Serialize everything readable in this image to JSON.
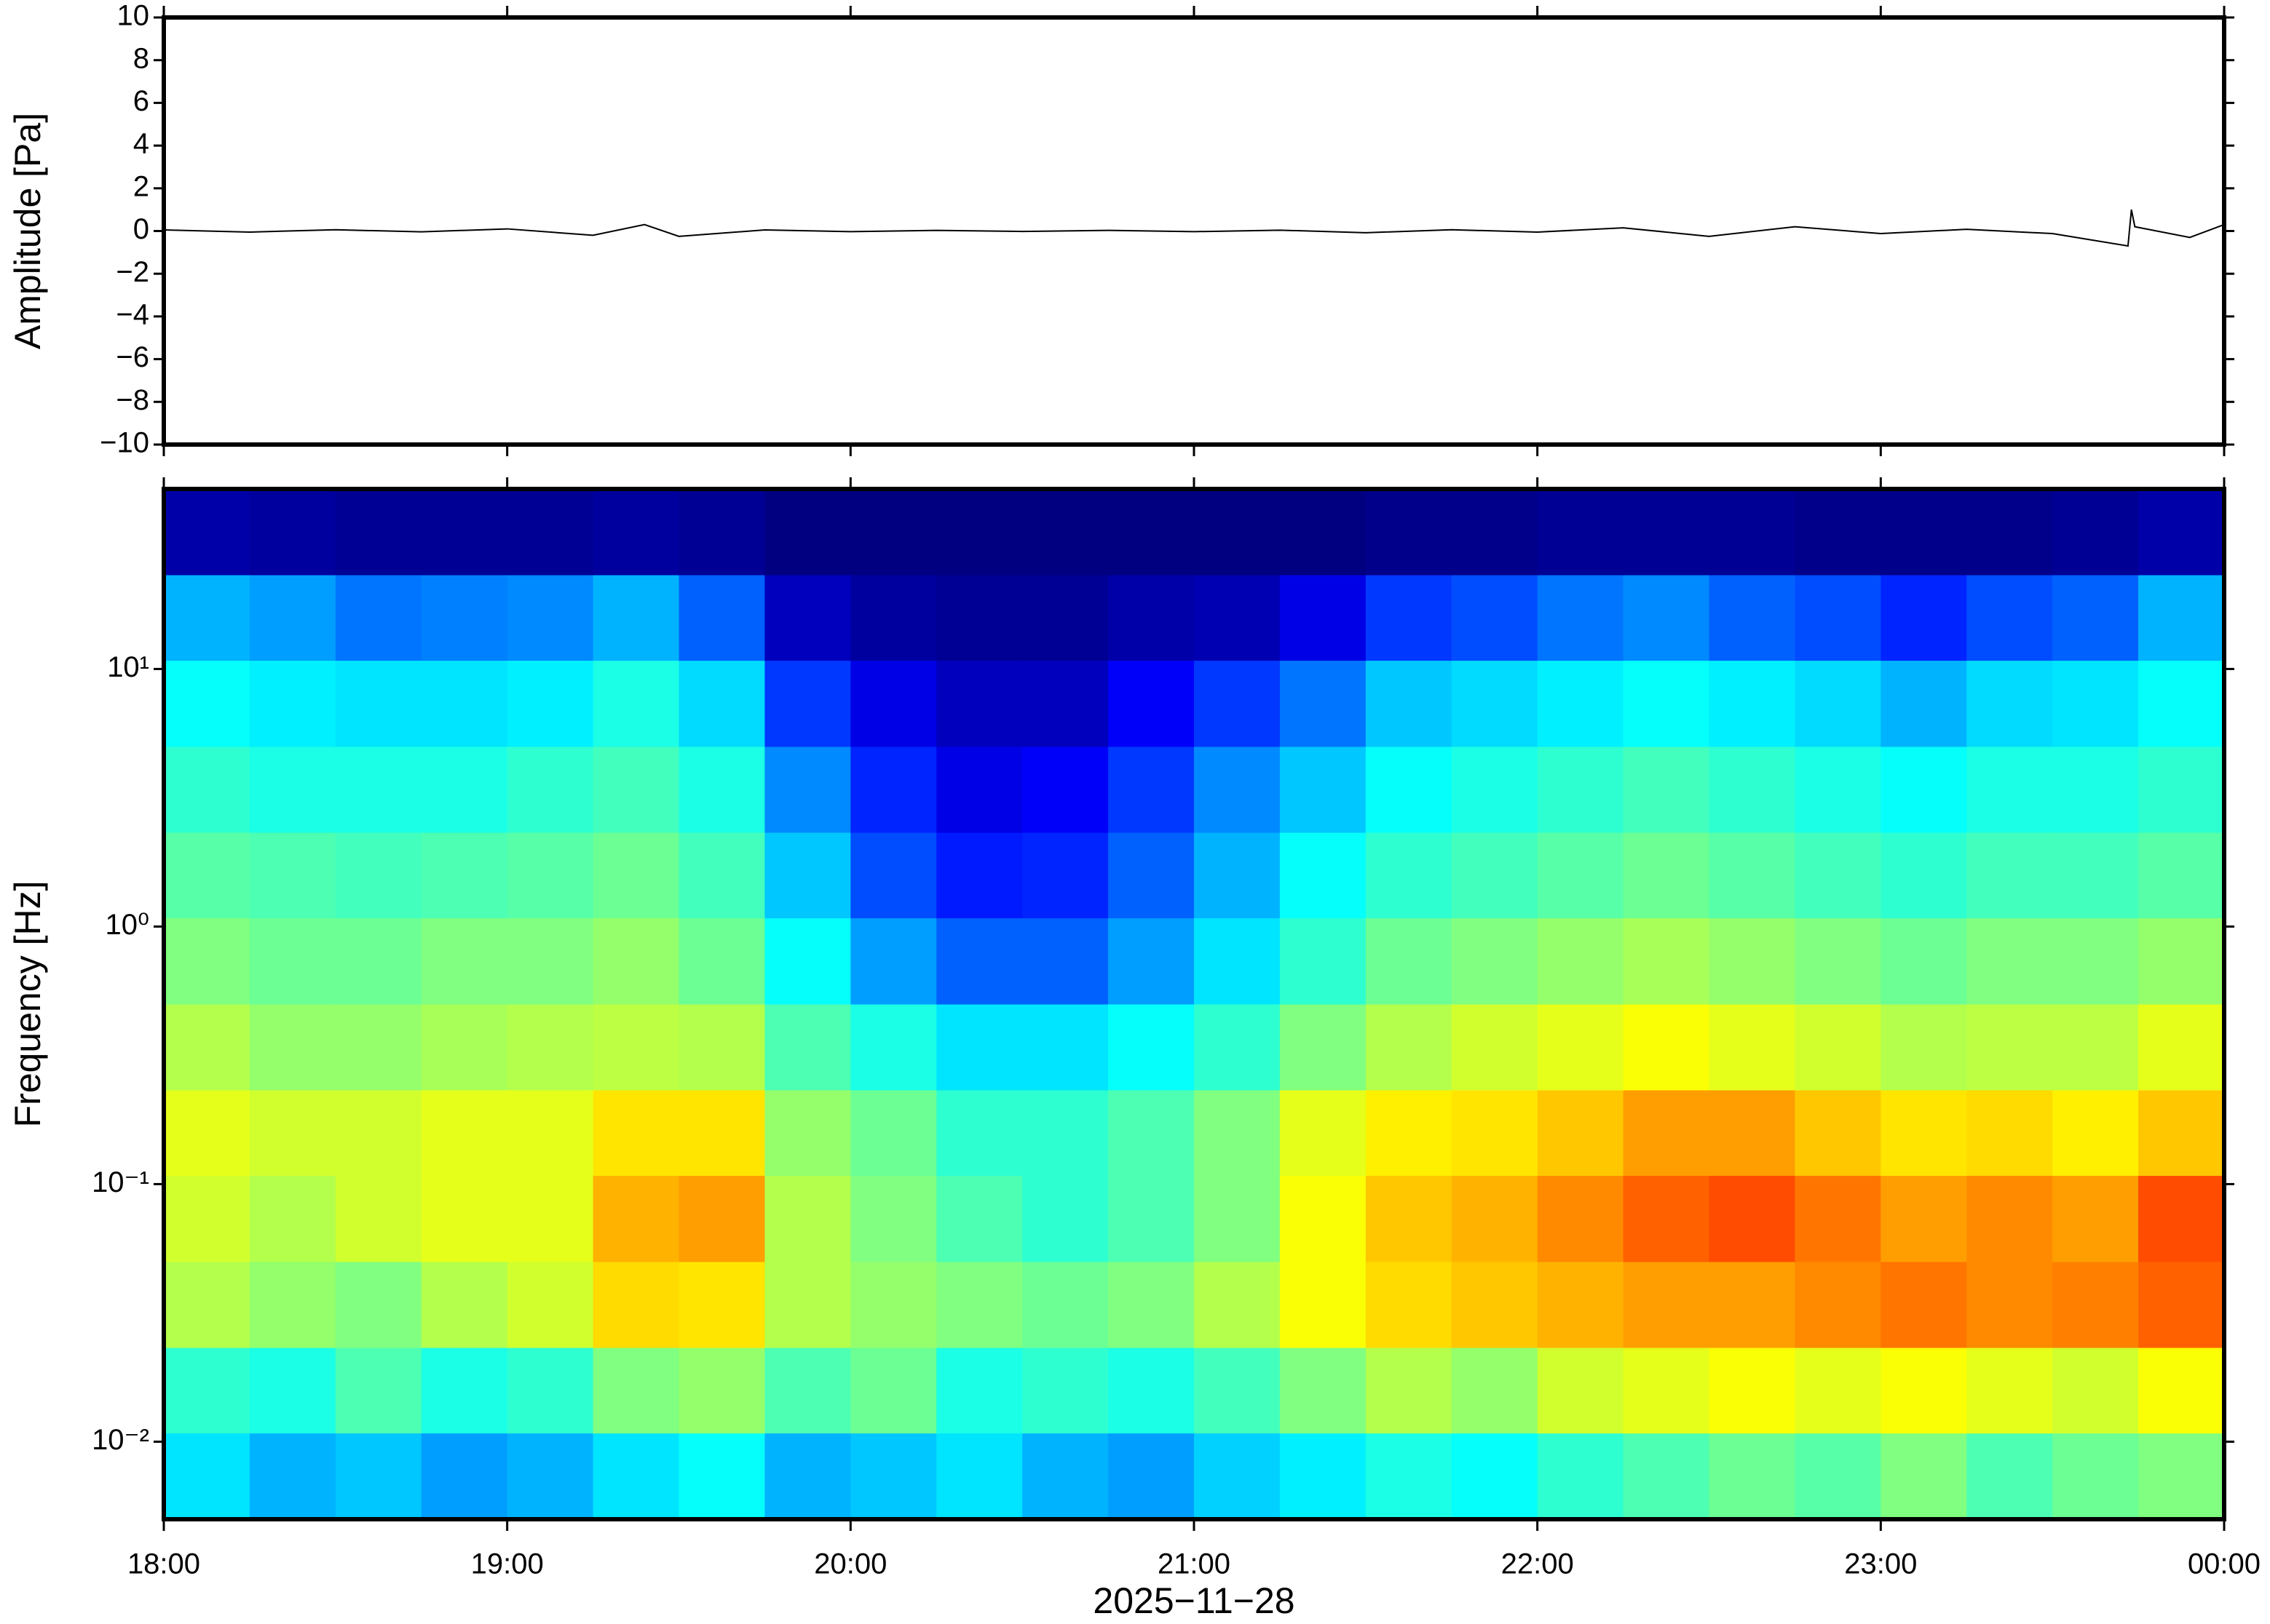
{
  "chart_data": [
    {
      "type": "line",
      "ylabel": "Amplitude [Pa]",
      "color": "#000000",
      "xlim": [
        18,
        24
      ],
      "xticks": [
        18,
        19,
        20,
        21,
        22,
        23,
        24
      ],
      "ylim": [
        -10,
        10
      ],
      "yticks": [
        {
          "value": -10,
          "label": "−10"
        },
        {
          "value": -8,
          "label": "−8"
        },
        {
          "value": -6,
          "label": "−6"
        },
        {
          "value": -4,
          "label": "−4"
        },
        {
          "value": -2,
          "label": "−2"
        },
        0,
        2,
        4,
        6,
        8,
        10
      ],
      "x": [
        18,
        18.25,
        18.5,
        18.75,
        19,
        19.25,
        19.4,
        19.5,
        19.75,
        20,
        20.25,
        20.5,
        20.75,
        21,
        21.25,
        21.5,
        21.75,
        22,
        22.25,
        22.5,
        22.75,
        23,
        23.25,
        23.5,
        23.72,
        23.73,
        23.74,
        23.9,
        24
      ],
      "values": [
        0.05,
        -0.05,
        0.06,
        -0.04,
        0.1,
        -0.2,
        0.3,
        -0.25,
        0.05,
        -0.03,
        0.03,
        -0.02,
        0.03,
        -0.03,
        0.04,
        -0.08,
        0.06,
        -0.05,
        0.15,
        -0.25,
        0.2,
        -0.12,
        0.08,
        -0.12,
        -0.7,
        1.0,
        0.2,
        -0.3,
        0.3
      ]
    },
    {
      "type": "heatmap",
      "ylabel": "Frequency [Hz]",
      "xlabel": "2025−11−28",
      "colormap": "jet",
      "zlim": [
        0,
        1
      ],
      "xlim": [
        18,
        24
      ],
      "xticks": [
        {
          "value": 18,
          "label": "18:00"
        },
        {
          "value": 19,
          "label": "19:00"
        },
        {
          "value": 20,
          "label": "20:00"
        },
        {
          "value": 21,
          "label": "21:00"
        },
        {
          "value": 22,
          "label": "22:00"
        },
        {
          "value": 23,
          "label": "23:00"
        },
        {
          "value": 24,
          "label": "00:00"
        }
      ],
      "ylim": [
        0.005,
        50
      ],
      "log_y": true,
      "yticks": [
        {
          "value": 0.01,
          "label": "10⁻²"
        },
        {
          "value": 0.1,
          "label": "10⁻¹"
        },
        {
          "value": 1,
          "label": "10⁰"
        },
        {
          "value": 10,
          "label": "10¹"
        }
      ],
      "x_bins": [
        18,
        18.25,
        18.5,
        18.75,
        19,
        19.25,
        19.5,
        19.75,
        20,
        20.25,
        20.5,
        20.75,
        21,
        21.25,
        21.5,
        21.75,
        22,
        22.25,
        22.5,
        22.75,
        23,
        23.25,
        23.5,
        23.75,
        24
      ],
      "y_bins": [
        0.005,
        0.0108,
        0.0232,
        0.05,
        0.108,
        0.232,
        0.5,
        1.08,
        2.32,
        5,
        10.8,
        23.2,
        50
      ],
      "z": [
        [
          0.35,
          0.3,
          0.32,
          0.28,
          0.3,
          0.35,
          0.38,
          0.3,
          0.32,
          0.35,
          0.3,
          0.28,
          0.33,
          0.36,
          0.4,
          0.38,
          0.42,
          0.45,
          0.48,
          0.46,
          0.5,
          0.45,
          0.48,
          0.5
        ],
        [
          0.42,
          0.4,
          0.45,
          0.4,
          0.42,
          0.5,
          0.52,
          0.45,
          0.48,
          0.4,
          0.42,
          0.4,
          0.44,
          0.5,
          0.55,
          0.52,
          0.58,
          0.6,
          0.62,
          0.6,
          0.62,
          0.6,
          0.58,
          0.62
        ],
        [
          0.55,
          0.52,
          0.5,
          0.55,
          0.58,
          0.66,
          0.65,
          0.55,
          0.52,
          0.5,
          0.48,
          0.5,
          0.55,
          0.62,
          0.66,
          0.68,
          0.7,
          0.72,
          0.72,
          0.74,
          0.76,
          0.74,
          0.75,
          0.78
        ],
        [
          0.58,
          0.55,
          0.58,
          0.6,
          0.6,
          0.7,
          0.72,
          0.55,
          0.5,
          0.45,
          0.42,
          0.45,
          0.5,
          0.62,
          0.68,
          0.7,
          0.74,
          0.78,
          0.8,
          0.76,
          0.72,
          0.74,
          0.72,
          0.8
        ],
        [
          0.6,
          0.58,
          0.58,
          0.6,
          0.6,
          0.65,
          0.65,
          0.52,
          0.48,
          0.42,
          0.42,
          0.45,
          0.5,
          0.6,
          0.64,
          0.65,
          0.68,
          0.72,
          0.72,
          0.68,
          0.65,
          0.66,
          0.64,
          0.68
        ],
        [
          0.55,
          0.52,
          0.52,
          0.54,
          0.55,
          0.56,
          0.55,
          0.45,
          0.4,
          0.35,
          0.35,
          0.38,
          0.42,
          0.5,
          0.55,
          0.58,
          0.6,
          0.62,
          0.6,
          0.58,
          0.55,
          0.56,
          0.56,
          0.6
        ],
        [
          0.5,
          0.48,
          0.48,
          0.5,
          0.5,
          0.52,
          0.48,
          0.38,
          0.28,
          0.22,
          0.22,
          0.28,
          0.35,
          0.42,
          0.48,
          0.5,
          0.52,
          0.54,
          0.52,
          0.5,
          0.48,
          0.5,
          0.5,
          0.52
        ],
        [
          0.46,
          0.45,
          0.44,
          0.45,
          0.46,
          0.48,
          0.44,
          0.32,
          0.2,
          0.15,
          0.16,
          0.22,
          0.3,
          0.38,
          0.42,
          0.44,
          0.46,
          0.48,
          0.46,
          0.44,
          0.42,
          0.44,
          0.44,
          0.46
        ],
        [
          0.42,
          0.4,
          0.4,
          0.4,
          0.42,
          0.44,
          0.4,
          0.26,
          0.16,
          0.1,
          0.12,
          0.18,
          0.26,
          0.32,
          0.38,
          0.4,
          0.42,
          0.44,
          0.42,
          0.4,
          0.38,
          0.4,
          0.4,
          0.42
        ],
        [
          0.38,
          0.36,
          0.35,
          0.35,
          0.36,
          0.4,
          0.34,
          0.18,
          0.1,
          0.06,
          0.06,
          0.12,
          0.18,
          0.24,
          0.32,
          0.34,
          0.36,
          0.38,
          0.36,
          0.34,
          0.3,
          0.34,
          0.35,
          0.38
        ],
        [
          0.3,
          0.28,
          0.24,
          0.25,
          0.26,
          0.3,
          0.22,
          0.06,
          0.03,
          0.02,
          0.02,
          0.04,
          0.05,
          0.1,
          0.18,
          0.2,
          0.24,
          0.26,
          0.22,
          0.2,
          0.16,
          0.2,
          0.22,
          0.3
        ],
        [
          0.04,
          0.03,
          0.02,
          0.02,
          0.02,
          0.03,
          0.02,
          0,
          0,
          0,
          0,
          0,
          0,
          0,
          0.01,
          0.01,
          0.02,
          0.02,
          0.02,
          0.01,
          0.01,
          0.01,
          0.02,
          0.04
        ]
      ]
    }
  ]
}
